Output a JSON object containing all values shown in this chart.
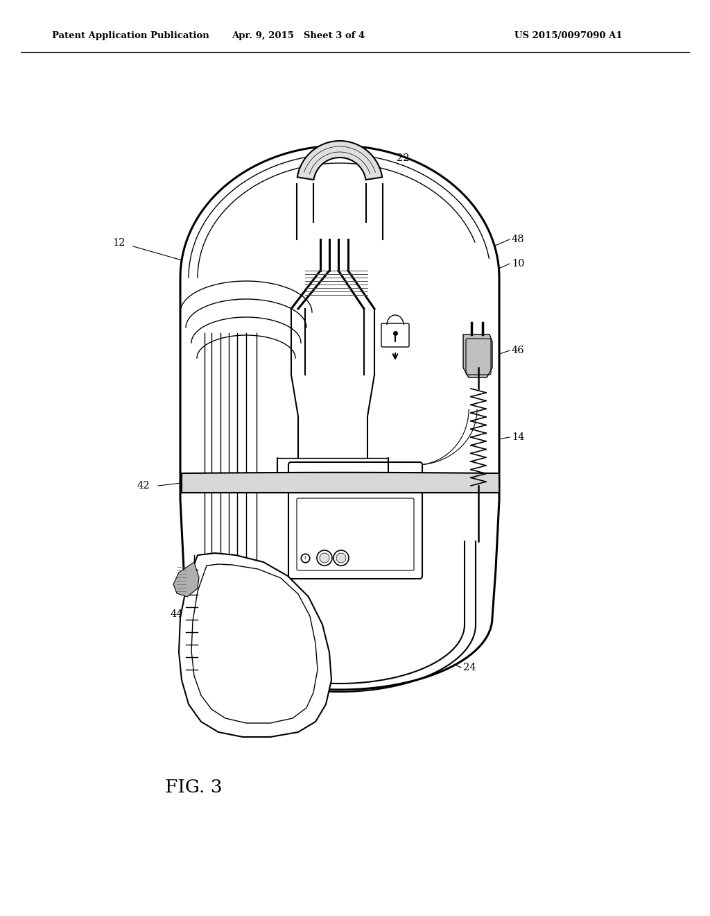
{
  "title_left": "Patent Application Publication",
  "title_center": "Apr. 9, 2015   Sheet 3 of 4",
  "title_right": "US 2015/0097090 A1",
  "fig_label": "FIG. 3",
  "background_color": "#ffffff",
  "text_color": "#000000",
  "header_fontsize": 9.5,
  "label_fontsize": 10.5,
  "fig_label_fontsize": 19
}
